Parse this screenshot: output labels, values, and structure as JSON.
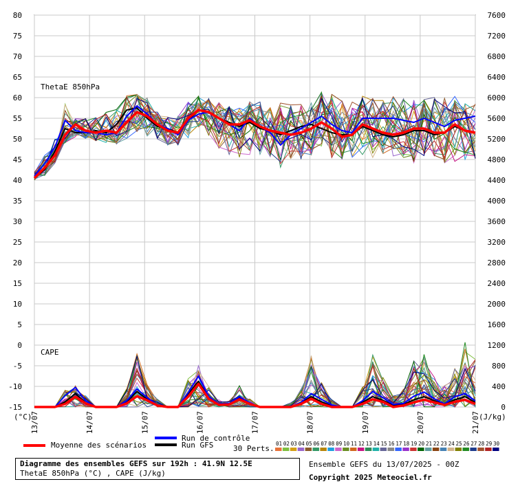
{
  "legend": {
    "mean_label": "Moyenne des scénarios",
    "control_label": "Run de contrôle",
    "gfs_label": "Run GFS",
    "perts_label": "30 Perts.",
    "mean_color": "#ff0000",
    "control_color": "#0000ff",
    "gfs_color": "#000000"
  },
  "info": {
    "title": "Diagramme des ensembles GEFS sur 192h : 41.9N 12.5E",
    "subtitle": "ThetaE 850hPa (°C) , CAPE (J/kg)"
  },
  "run_info": {
    "ensemble": "Ensemble GEFS du 13/07/2025 - 00Z",
    "copyright": "Copyright 2025 Meteociel.fr"
  },
  "chart_data": {
    "type": "line",
    "panel_labels": [
      "ThetaE 850hPa",
      "CAPE"
    ],
    "left_axis": {
      "unit": "(°C)",
      "ticks": [
        80,
        75,
        70,
        65,
        60,
        55,
        50,
        45,
        40,
        35,
        30,
        25,
        20,
        15,
        10,
        5,
        0,
        -5,
        -10,
        -15
      ],
      "ylim": [
        -15,
        80
      ]
    },
    "right_axis": {
      "unit": "(J/kg)",
      "ticks": [
        7600,
        7200,
        6800,
        6400,
        6000,
        5600,
        5200,
        4800,
        4400,
        4000,
        3600,
        3200,
        2800,
        2400,
        2000,
        1600,
        1200,
        800,
        400,
        0
      ],
      "ylim": [
        0,
        7600
      ]
    },
    "x_axis": {
      "categories": [
        "13/07",
        "14/07",
        "15/07",
        "16/07",
        "17/07",
        "18/07",
        "19/07",
        "20/07",
        "21/07"
      ],
      "grid": true
    },
    "perturbation_ids": [
      "01",
      "02",
      "03",
      "04",
      "05",
      "06",
      "07",
      "08",
      "09",
      "10",
      "11",
      "12",
      "13",
      "14",
      "15",
      "16",
      "17",
      "18",
      "19",
      "20",
      "21",
      "22",
      "23",
      "24",
      "25",
      "26",
      "27",
      "28",
      "29",
      "30"
    ],
    "perturbation_colors": [
      "#e8733a",
      "#7fbf3f",
      "#d4a017",
      "#9966cc",
      "#8b5a2b",
      "#339966",
      "#b8860b",
      "#1f9fdf",
      "#cc66cc",
      "#6b8e23",
      "#d2691e",
      "#c71585",
      "#2e8b57",
      "#20b2aa",
      "#666699",
      "#888888",
      "#3366ff",
      "#9932cc",
      "#cc3333",
      "#006400",
      "#5f9ea0",
      "#8b4513",
      "#4682b4",
      "#d2b48c",
      "#808000",
      "#228b22",
      "#1e3c8c",
      "#a0522d",
      "#b22222",
      "#000080"
    ],
    "time_step_hours": 6,
    "thetae_mean": [
      40.5,
      43,
      46,
      51,
      53.5,
      52,
      51.5,
      52,
      51.5,
      54,
      56.5,
      55.5,
      53.5,
      52,
      51.5,
      55,
      57,
      56.5,
      55,
      53.5,
      53.5,
      54.5,
      53,
      52,
      51.5,
      51,
      51.5,
      52.5,
      54,
      52.5,
      50.5,
      51,
      53.5,
      52.5,
      51.5,
      51,
      51.5,
      52.5,
      52.5,
      51.5,
      51.5,
      53.5,
      52,
      51.5
    ],
    "thetae_control": [
      41,
      44,
      48,
      54.5,
      52,
      51.5,
      51.5,
      51,
      51.5,
      55.5,
      58,
      56,
      53.5,
      52.5,
      51,
      54.5,
      56,
      56.5,
      55,
      53.5,
      52,
      55,
      53,
      51.5,
      48.5,
      51,
      52.5,
      54,
      55.5,
      53.5,
      52,
      51.5,
      55,
      55,
      55,
      55,
      54.5,
      54,
      55,
      54,
      53,
      54.5,
      55,
      55.5
    ],
    "thetae_gfs": [
      40.5,
      42.5,
      47,
      52.5,
      51.5,
      51.5,
      52,
      51.5,
      53.5,
      57,
      57.5,
      55,
      53,
      52.5,
      51.5,
      54.5,
      57,
      56.5,
      55,
      54,
      53,
      54,
      52.5,
      52,
      51,
      52,
      53,
      53.5,
      52.5,
      51.5,
      51,
      51,
      53,
      52,
      51,
      50.5,
      51,
      52,
      52,
      51,
      51.5,
      53,
      52,
      51.5
    ],
    "cape_mean": [
      0,
      0,
      0,
      60,
      200,
      70,
      0,
      0,
      0,
      70,
      210,
      130,
      30,
      0,
      0,
      200,
      450,
      160,
      40,
      50,
      150,
      60,
      0,
      0,
      0,
      0,
      60,
      160,
      60,
      0,
      0,
      0,
      60,
      150,
      100,
      0,
      30,
      90,
      140,
      90,
      40,
      100,
      140,
      60
    ],
    "cape_control": [
      0,
      0,
      0,
      220,
      380,
      120,
      0,
      0,
      0,
      120,
      350,
      180,
      40,
      0,
      0,
      280,
      600,
      200,
      60,
      70,
      200,
      80,
      0,
      0,
      0,
      0,
      90,
      260,
      150,
      40,
      0,
      0,
      120,
      300,
      180,
      50,
      70,
      210,
      290,
      160,
      60,
      200,
      260,
      120
    ],
    "cape_gfs": [
      0,
      0,
      0,
      100,
      260,
      80,
      0,
      0,
      0,
      100,
      300,
      150,
      30,
      0,
      0,
      250,
      500,
      180,
      40,
      60,
      170,
      60,
      0,
      0,
      0,
      0,
      80,
      200,
      100,
      20,
      0,
      0,
      90,
      200,
      130,
      30,
      50,
      140,
      200,
      120,
      50,
      140,
      200,
      90
    ],
    "thetae_envelope_min": [
      40,
      41,
      44,
      49,
      50.5,
      50,
      49.5,
      49,
      48.5,
      50,
      51,
      50.5,
      49.5,
      48.5,
      48,
      49,
      51,
      50,
      47.5,
      46,
      45.5,
      46,
      46,
      45,
      43,
      44.5,
      45,
      46,
      46.5,
      45,
      44.5,
      45.5,
      45,
      45.5,
      45,
      45.5,
      45,
      44,
      45.5,
      45.5,
      44,
      44.5,
      45,
      45
    ],
    "thetae_envelope_max": [
      42,
      46,
      50,
      58.5,
      55,
      55,
      55.5,
      57,
      58,
      60.5,
      61,
      60,
      57,
      55.5,
      56,
      59,
      60.5,
      60,
      59,
      58,
      57.5,
      59,
      59.5,
      58,
      59,
      58.5,
      59,
      60,
      61.5,
      61,
      59.5,
      59,
      60.5,
      60.5,
      60,
      60.5,
      60,
      59.5,
      60,
      60.5,
      60.5,
      60.5,
      60,
      59.5
    ],
    "cape_envelope_max": [
      0,
      0,
      0,
      350,
      420,
      250,
      0,
      0,
      0,
      450,
      1100,
      500,
      160,
      0,
      0,
      550,
      900,
      400,
      160,
      120,
      450,
      160,
      0,
      0,
      0,
      80,
      350,
      1000,
      480,
      150,
      0,
      0,
      380,
      1050,
      620,
      220,
      380,
      900,
      1100,
      650,
      420,
      800,
      1300,
      950
    ]
  }
}
